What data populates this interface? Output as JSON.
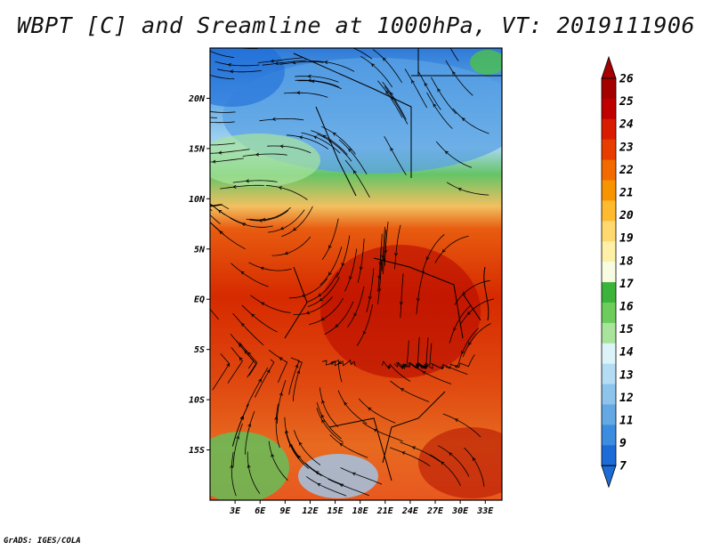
{
  "title": "WBPT [C] and Sreamline at 1000hPa, VT: 2019111906",
  "footer": "GrADS: IGES/COLA",
  "map": {
    "lat_labels": [
      "20N",
      "15N",
      "10N",
      "5N",
      "EQ",
      "5S",
      "10S",
      "15S"
    ],
    "lat_values": [
      20,
      15,
      10,
      5,
      0,
      -5,
      -10,
      -15
    ],
    "lon_labels": [
      "3E",
      "6E",
      "9E",
      "12E",
      "15E",
      "18E",
      "21E",
      "24E",
      "27E",
      "30E",
      "33E"
    ],
    "lon_values": [
      3,
      6,
      9,
      12,
      15,
      18,
      21,
      24,
      27,
      30,
      33
    ],
    "lon_range": [
      0,
      35
    ],
    "lat_range": [
      -20,
      25
    ]
  },
  "colorbar": {
    "labels": [
      "26",
      "25",
      "24",
      "23",
      "22",
      "21",
      "20",
      "19",
      "18",
      "17",
      "16",
      "15",
      "14",
      "13",
      "12",
      "11",
      "9",
      "7"
    ],
    "colors": [
      "#a50000",
      "#c00000",
      "#d91c00",
      "#e83c00",
      "#f26a00",
      "#f79400",
      "#ffba30",
      "#ffd870",
      "#fff0a8",
      "#f8fce0",
      "#3cb43c",
      "#6ccc5c",
      "#a8e49c",
      "#dcf4f8",
      "#b4dcf4",
      "#8cc4ec",
      "#64a8e4",
      "#3c8ce0",
      "#1c6cd8"
    ],
    "top_arrow_color": "#a50000",
    "bottom_arrow_color": "#1c6cd8"
  }
}
